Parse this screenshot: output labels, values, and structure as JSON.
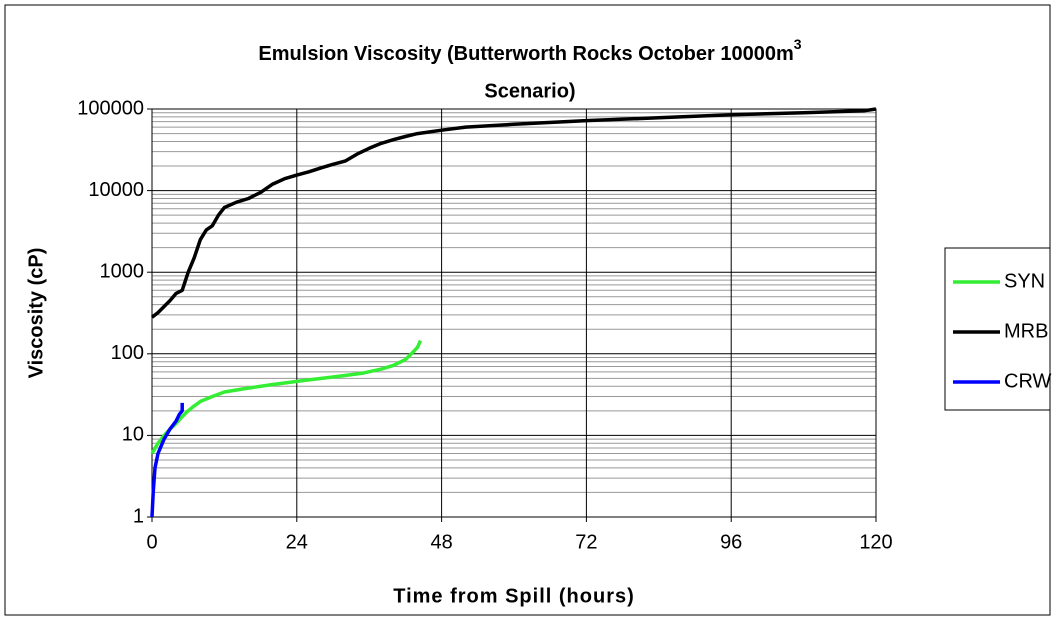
{
  "chart_data": {
    "type": "line",
    "title": {
      "line1": "Emulsion Viscosity (Butterworth Rocks October 10000m",
      "superscript": "3",
      "line2": "Scenario)"
    },
    "x_label": "Time from Spill (hours)",
    "y_label": "Viscosity (cP)",
    "log_y": true,
    "grid": true,
    "legend": "right",
    "xlim": [
      0,
      120
    ],
    "xticks": [
      0,
      24,
      48,
      72,
      96,
      120
    ],
    "ylim": [
      1,
      100000
    ],
    "yticks": [
      1,
      10,
      100,
      1000,
      10000,
      100000
    ],
    "series": [
      {
        "name": "SYN",
        "color": "#33ee33",
        "x": [
          0,
          1,
          2,
          3,
          4,
          5,
          6,
          7,
          8,
          10,
          12,
          15,
          20,
          25,
          30,
          35,
          38,
          40,
          42,
          43,
          44,
          44.5
        ],
        "values": [
          6,
          8,
          10,
          12,
          14,
          17,
          20,
          23,
          26,
          30,
          34,
          37,
          42,
          47,
          52,
          58,
          65,
          72,
          85,
          100,
          120,
          145
        ]
      },
      {
        "name": "MRB",
        "color": "#000000",
        "x": [
          0,
          1,
          2,
          3,
          4,
          5,
          6,
          7,
          8,
          9,
          10,
          11,
          12,
          14,
          16,
          18,
          20,
          22,
          24,
          26,
          28,
          30,
          32,
          34,
          36,
          38,
          40,
          42,
          44,
          48,
          52,
          60,
          72,
          84,
          96,
          108,
          118,
          120
        ],
        "values": [
          280,
          320,
          380,
          450,
          550,
          600,
          1000,
          1500,
          2500,
          3300,
          3700,
          5000,
          6200,
          7200,
          8000,
          9500,
          12000,
          14000,
          15500,
          17000,
          19000,
          21000,
          23000,
          28000,
          33000,
          38000,
          42000,
          46000,
          50000,
          55000,
          60000,
          65000,
          72000,
          78000,
          85000,
          90000,
          95000,
          100000
        ]
      },
      {
        "name": "CRW",
        "color": "#0000ff",
        "x": [
          0,
          0.2,
          0.5,
          1,
          2,
          3,
          4,
          4.5,
          5,
          5
        ],
        "values": [
          1,
          2,
          4,
          6,
          9,
          12,
          15,
          18,
          20,
          25
        ]
      }
    ]
  }
}
